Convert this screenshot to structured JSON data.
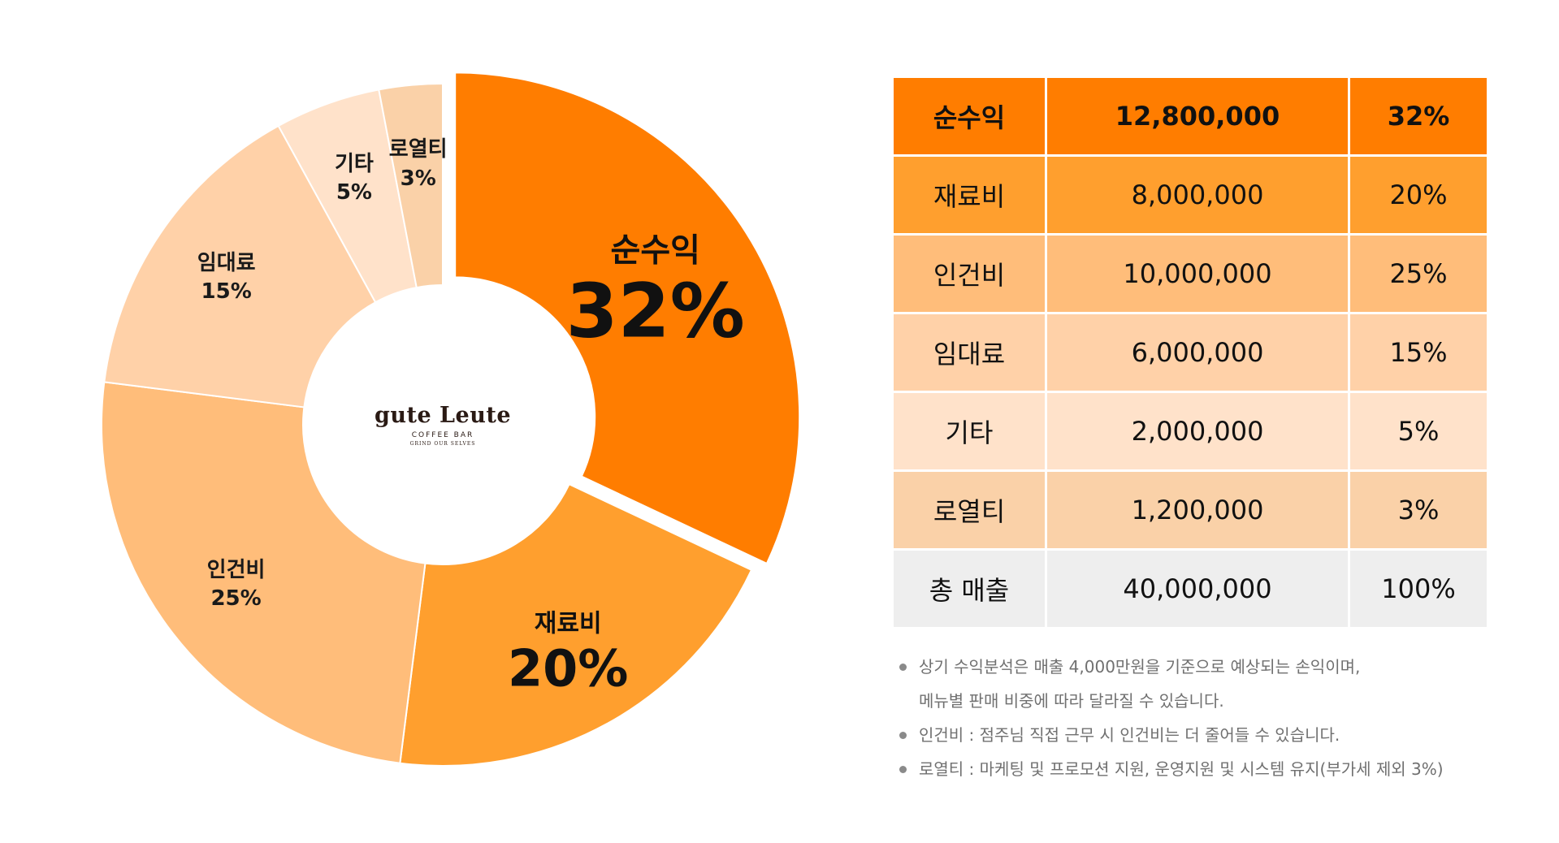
{
  "chart_data": {
    "type": "pie",
    "variant": "donut",
    "slices": [
      {
        "label": "순수익",
        "value": 32,
        "pct": "32%",
        "color": "#FF7D00",
        "emphasis": "big"
      },
      {
        "label": "재료비",
        "value": 20,
        "pct": "20%",
        "color": "#FF9F2E",
        "emphasis": "med"
      },
      {
        "label": "인건비",
        "value": 25,
        "pct": "25%",
        "color": "#FFBD7A",
        "emphasis": "small"
      },
      {
        "label": "임대료",
        "value": 15,
        "pct": "15%",
        "color": "#FFD1A8",
        "emphasis": "small"
      },
      {
        "label": "기타",
        "value": 5,
        "pct": "5%",
        "color": "#FFE2CA",
        "emphasis": "small"
      },
      {
        "label": "로열티",
        "value": 3,
        "pct": "3%",
        "color": "#FAD1A8",
        "emphasis": "small"
      }
    ]
  },
  "logo": {
    "brand": "gute Leute",
    "sub": "COFFEE BAR",
    "tagline": "GRIND OUR SELVES"
  },
  "table": {
    "rows": [
      {
        "item": "순수익",
        "amount": "12,800,000",
        "pct": "32%",
        "bg": "#FF7D00",
        "bold": true
      },
      {
        "item": "재료비",
        "amount": "8,000,000",
        "pct": "20%",
        "bg": "#FF9F2E",
        "bold": false
      },
      {
        "item": "인건비",
        "amount": "10,000,000",
        "pct": "25%",
        "bg": "#FFBD7A",
        "bold": false
      },
      {
        "item": "임대료",
        "amount": "6,000,000",
        "pct": "15%",
        "bg": "#FFD1A8",
        "bold": false
      },
      {
        "item": "기타",
        "amount": "2,000,000",
        "pct": "5%",
        "bg": "#FFE2CA",
        "bold": false
      },
      {
        "item": "로열티",
        "amount": "1,200,000",
        "pct": "3%",
        "bg": "#FAD1A8",
        "bold": false
      },
      {
        "item": "총 매출",
        "amount": "40,000,000",
        "pct": "100%",
        "bg": "#EEEEEE",
        "bold": false
      }
    ]
  },
  "notes": [
    {
      "line1": "상기 수익분석은 매출 4,000만원을 기준으로 예상되는 손익이며,",
      "line2": "메뉴별 판매 비중에 따라 달라질 수 있습니다."
    },
    {
      "line1": "인건비 : 점주님 직접 근무 시 인건비는 더 줄어들 수 있습니다.",
      "line2": ""
    },
    {
      "line1": "로열티 : 마케팅 및 프로모션 지원, 운영지원 및 시스템 유지(부가세 제외 3%)",
      "line2": ""
    }
  ]
}
